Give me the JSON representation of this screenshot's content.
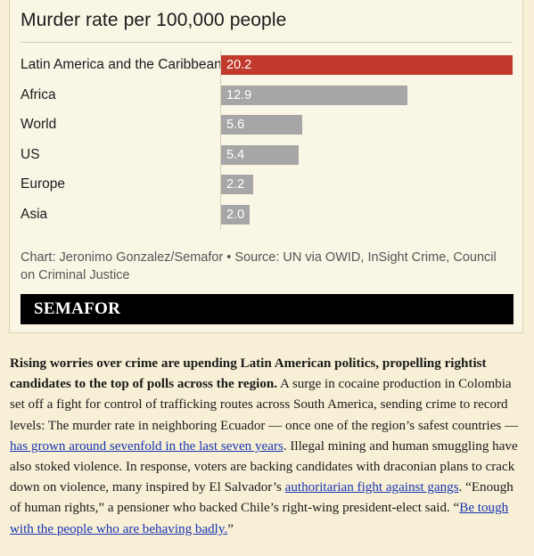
{
  "chart_data": {
    "type": "bar",
    "orientation": "horizontal",
    "title": "Murder rate per 100,000 people",
    "categories": [
      "Latin America and the Caribbean",
      "Africa",
      "World",
      "US",
      "Europe",
      "Asia"
    ],
    "values": [
      20.2,
      12.9,
      5.6,
      5.4,
      2.2,
      2.0
    ],
    "value_labels": [
      "20.2",
      "12.9",
      "5.6",
      "5.4",
      "2.2",
      "2.0"
    ],
    "highlight_color": "#c0392b",
    "bar_color": "#a6a6a6",
    "xlim": [
      0,
      20.2
    ],
    "grid": false,
    "source": "Chart: Jeronimo Gonzalez/Semafor • Source: UN via OWID, InSight Crime, Council on Criminal Justice"
  },
  "brand": {
    "name": "SEMAFOR"
  },
  "article": {
    "lead_bold": "Rising worries over crime are upending Latin American politics, propelling rightist candidates to the top of polls across the region.",
    "text1": " A surge in cocaine production in Colombia set off a fight for control of trafficking routes across South America, sending crime to record levels: The murder rate in neighboring Ecuador — once one of the region’s safest countries — ",
    "link1": "has grown around sevenfold in the last seven years",
    "text2": ". Illegal mining and human smuggling have also stoked violence. In response, voters are backing candidates with draconian plans to crack down on violence, many inspired by El Salvador’s ",
    "link2": "authoritarian fight against gangs",
    "text3": ". “Enough of human rights,” a pensioner who backed Chile’s right-wing president-elect said. “",
    "link3": "Be tough with the people who are behaving badly.",
    "text4": "”"
  },
  "colors": {
    "page_background": "#f7f0d6",
    "card_background": "#faf6e6",
    "link": "#1a33b3"
  }
}
